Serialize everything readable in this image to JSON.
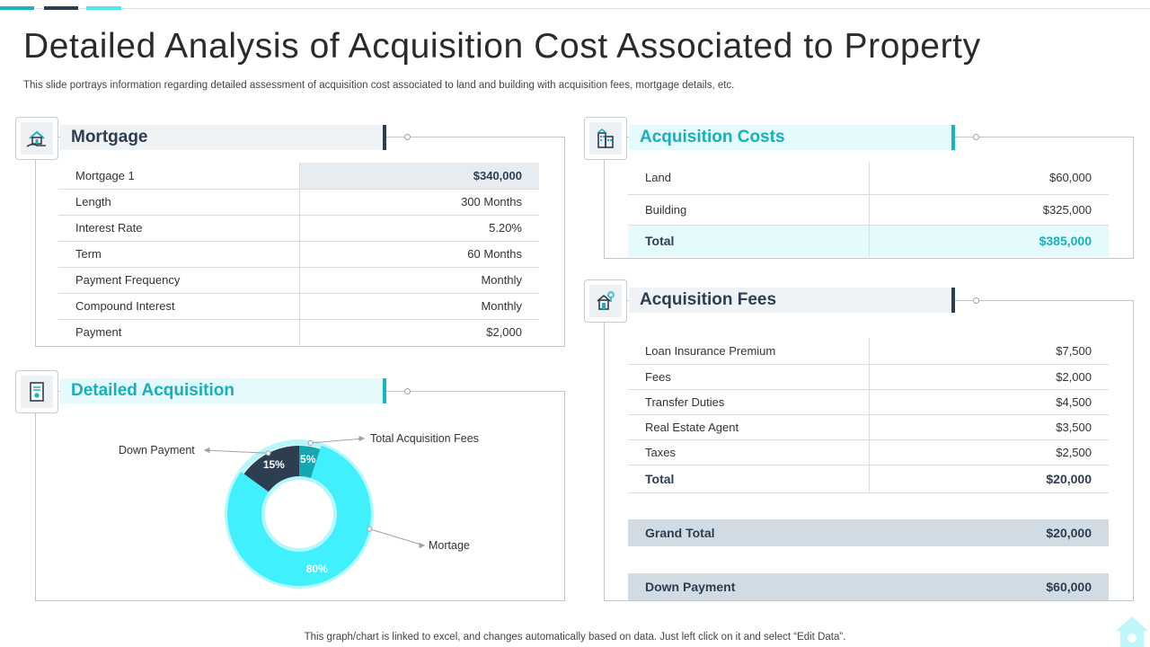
{
  "page": {
    "title": "Detailed Analysis of Acquisition Cost Associated to Property",
    "subtitle": "This slide portrays information regarding detailed assessment of acquisition cost associated to land and building with acquisition fees, mortgage details, etc.",
    "footer": "This graph/chart is linked to excel, and changes automatically based on data. Just left click on it and select “Edit Data”."
  },
  "mortgage": {
    "title": "Mortgage",
    "icon": "house-hand-icon",
    "rows": [
      {
        "label": "Mortgage 1",
        "value": "$340,000"
      },
      {
        "label": "Length",
        "value": "300 Months"
      },
      {
        "label": "Interest Rate",
        "value": "5.20%"
      },
      {
        "label": "Term",
        "value": "60 Months"
      },
      {
        "label": "Payment Frequency",
        "value": "Monthly"
      },
      {
        "label": "Compound Interest",
        "value": "Monthly"
      },
      {
        "label": "Payment",
        "value": "$2,000"
      }
    ]
  },
  "acquisition_costs": {
    "title": "Acquisition Costs",
    "icon": "buildings-icon",
    "rows": [
      {
        "label": "Land",
        "value": "$60,000"
      },
      {
        "label": "Building",
        "value": "$325,000"
      }
    ],
    "total": {
      "label": "Total",
      "value": "$385,000"
    }
  },
  "acquisition_fees": {
    "title": "Acquisition Fees",
    "icon": "property-icon",
    "rows": [
      {
        "label": "Loan Insurance Premium",
        "value": "$7,500"
      },
      {
        "label": "Fees",
        "value": "$2,000"
      },
      {
        "label": "Transfer Duties",
        "value": "$4,500"
      },
      {
        "label": "Real Estate Agent",
        "value": "$3,500"
      },
      {
        "label": "Taxes",
        "value": "$2,500"
      }
    ],
    "total": {
      "label": "Total",
      "value": "$20,000"
    },
    "grand_total": {
      "label": "Grand Total",
      "value": "$20,000"
    },
    "down_payment": {
      "label": "Down Payment",
      "value": "$60,000"
    }
  },
  "detailed_acquisition": {
    "title": "Detailed Acquisition",
    "icon": "document-icon"
  },
  "colors": {
    "dark": "#2d3e50",
    "teal": "#19b4c1",
    "cyan": "#40f0fc",
    "mid_teal": "#13a7b3"
  },
  "chart_data": {
    "type": "pie",
    "categories": [
      "Mortage",
      "Down Payment",
      "Total Acquisition Fees"
    ],
    "values": [
      80,
      15,
      5
    ],
    "labels": [
      "80%",
      "15%",
      "5%"
    ],
    "colors": [
      "#40f0fc",
      "#2d3e50",
      "#13a7b3"
    ]
  }
}
